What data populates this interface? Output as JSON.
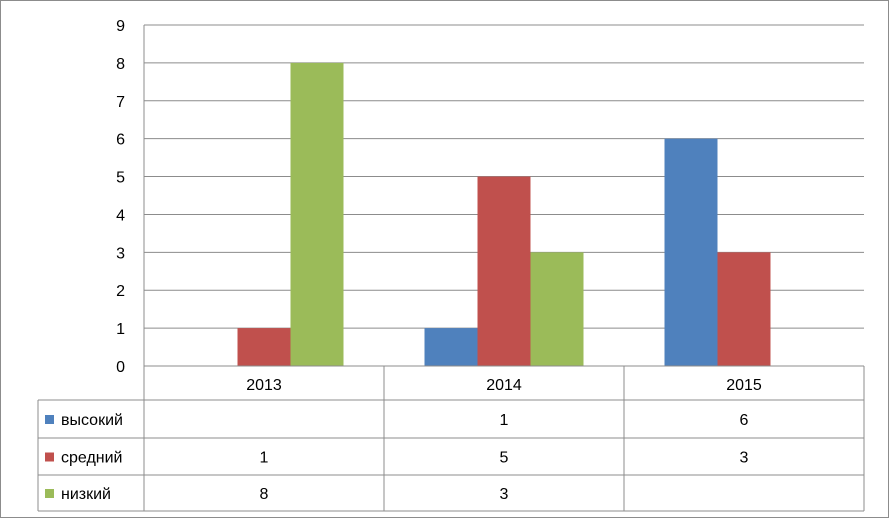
{
  "chart_data": {
    "type": "bar",
    "categories": [
      "2013",
      "2014",
      "2015"
    ],
    "series": [
      {
        "name": "высокий",
        "values": [
          null,
          1,
          6
        ],
        "color": "#4F81BD"
      },
      {
        "name": "средний",
        "values": [
          1,
          5,
          3
        ],
        "color": "#C0504D"
      },
      {
        "name": "низкий",
        "values": [
          8,
          3,
          null
        ],
        "color": "#9BBB59"
      }
    ],
    "ylim": [
      0,
      9
    ],
    "yticks": [
      "0",
      "1",
      "2",
      "3",
      "4",
      "5",
      "6",
      "7",
      "8",
      "9"
    ],
    "grid": true,
    "legend": "data-table",
    "table": [
      {
        "label": "высокий",
        "cells": [
          "",
          "1",
          "6"
        ]
      },
      {
        "label": "средний",
        "cells": [
          "1",
          "5",
          "3"
        ]
      },
      {
        "label": "низкий",
        "cells": [
          "8",
          "3",
          ""
        ]
      }
    ]
  }
}
